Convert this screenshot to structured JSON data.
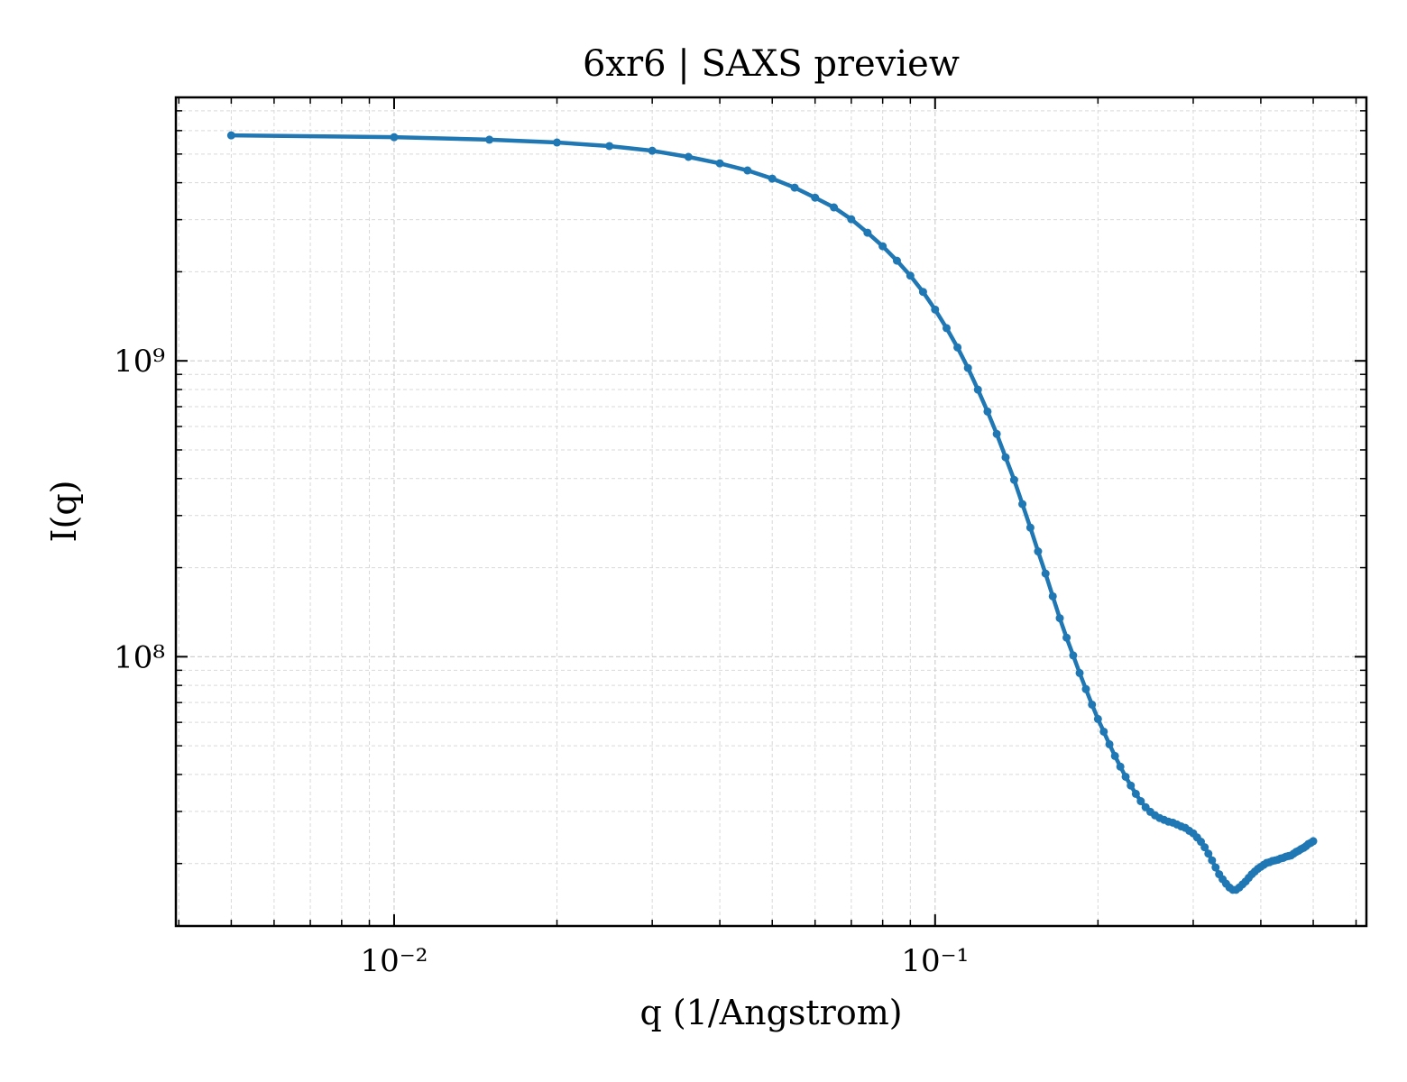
{
  "chart_data": {
    "type": "line",
    "title": "6xr6 | SAXS preview",
    "x_label": "q (1/Angstrom)",
    "y_label": "I(q)",
    "x_log": true,
    "y_log": true,
    "grid": true,
    "xlim": [
      0.00395,
      0.627
    ],
    "ylim": [
      12300000.0,
      7770000000.0
    ],
    "xticks": [
      {
        "value": 0.01,
        "label": "10⁻²"
      },
      {
        "value": 0.1,
        "label": "10⁻¹"
      }
    ],
    "yticks": [
      {
        "value": 100000000.0,
        "label": "10⁸"
      },
      {
        "value": 1000000000.0,
        "label": "10⁹"
      }
    ],
    "minor_xticks": [
      0.004,
      0.005,
      0.006,
      0.007,
      0.008,
      0.009,
      0.02,
      0.03,
      0.04,
      0.05,
      0.06,
      0.07,
      0.08,
      0.09,
      0.2,
      0.3,
      0.4,
      0.5,
      0.6
    ],
    "minor_yticks": [
      20000000.0,
      30000000.0,
      40000000.0,
      50000000.0,
      60000000.0,
      70000000.0,
      80000000.0,
      90000000.0,
      200000000.0,
      300000000.0,
      400000000.0,
      500000000.0,
      600000000.0,
      700000000.0,
      800000000.0,
      900000000.0,
      2000000000.0,
      3000000000.0,
      4000000000.0,
      5000000000.0,
      6000000000.0,
      7000000000.0
    ],
    "x": [
      0.005,
      0.01,
      0.015,
      0.02,
      0.025,
      0.03,
      0.035,
      0.04,
      0.045,
      0.05,
      0.055,
      0.06,
      0.065,
      0.07,
      0.075,
      0.08,
      0.085,
      0.09,
      0.095,
      0.1,
      0.105,
      0.11,
      0.115,
      0.12,
      0.125,
      0.13,
      0.135,
      0.14,
      0.145,
      0.15,
      0.155,
      0.16,
      0.165,
      0.17,
      0.175,
      0.18,
      0.185,
      0.19,
      0.195,
      0.2,
      0.205,
      0.21,
      0.215,
      0.22,
      0.225,
      0.23,
      0.235,
      0.24,
      0.245,
      0.25,
      0.255,
      0.26,
      0.265,
      0.27,
      0.275,
      0.28,
      0.285,
      0.29,
      0.295,
      0.3,
      0.305,
      0.31,
      0.315,
      0.32,
      0.325,
      0.33,
      0.335,
      0.34,
      0.345,
      0.35,
      0.355,
      0.36,
      0.365,
      0.37,
      0.375,
      0.38,
      0.385,
      0.39,
      0.395,
      0.4,
      0.405,
      0.41,
      0.415,
      0.42,
      0.425,
      0.43,
      0.435,
      0.44,
      0.445,
      0.45,
      0.455,
      0.46,
      0.465,
      0.47,
      0.475,
      0.48,
      0.485,
      0.49,
      0.495,
      0.5
    ],
    "series": [
      {
        "color": "#1f77b4",
        "values": [
          5780000000.0,
          5700000000.0,
          5590000000.0,
          5470000000.0,
          5320000000.0,
          5130000000.0,
          4890000000.0,
          4650000000.0,
          4400000000.0,
          4130000000.0,
          3850000000.0,
          3560000000.0,
          3300000000.0,
          3010000000.0,
          2710000000.0,
          2440000000.0,
          2180000000.0,
          1940000000.0,
          1710000000.0,
          1490000000.0,
          1290000000.0,
          1110000000.0,
          946000000.0,
          799000000.0,
          674000000.0,
          566000000.0,
          472000000.0,
          396000000.0,
          328000000.0,
          273000000.0,
          227000000.0,
          191000000.0,
          160000000.0,
          135000000.0,
          116000000.0,
          101000000.0,
          88100000.0,
          77700000.0,
          68900000.0,
          61600000.0,
          55800000.0,
          50600000.0,
          46200000.0,
          42500000.0,
          39300000.0,
          36700000.0,
          34400000.0,
          32500000.0,
          31000000.0,
          29900000.0,
          29100000.0,
          28500000.0,
          28100000.0,
          27700000.0,
          27500000.0,
          27100000.0,
          26700000.0,
          26400000.0,
          25800000.0,
          25300000.0,
          24500000.0,
          23700000.0,
          22700000.0,
          21600000.0,
          20500000.0,
          19400000.0,
          18400000.0,
          17700000.0,
          17100000.0,
          16600000.0,
          16300000.0,
          16300000.0,
          16600000.0,
          17000000.0,
          17400000.0,
          17900000.0,
          18400000.0,
          18800000.0,
          19200000.0,
          19500000.0,
          19800000.0,
          20100000.0,
          20200000.0,
          20400000.0,
          20500000.0,
          20600000.0,
          20800000.0,
          20900000.0,
          21100000.0,
          21200000.0,
          21300000.0,
          21600000.0,
          21900000.0,
          22100000.0,
          22400000.0,
          22600000.0,
          22900000.0,
          23300000.0,
          23500000.0,
          23800000.0
        ]
      }
    ]
  }
}
